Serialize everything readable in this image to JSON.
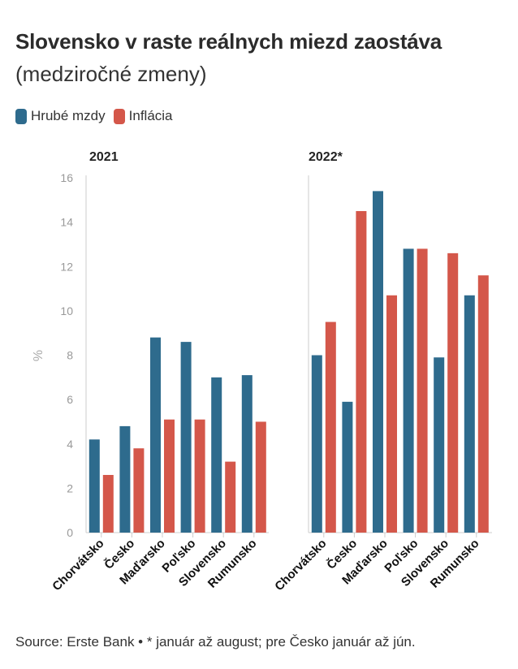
{
  "title": "Slovensko v raste reálnych miezd zaostáva",
  "subtitle": "(medziročné zmeny)",
  "legend": [
    {
      "label": "Hrubé mzdy",
      "color": "#2e6b8d"
    },
    {
      "label": "Inflácia",
      "color": "#d4574a"
    }
  ],
  "source": "Source: Erste Bank • * január až august; pre Česko január až jún.",
  "chart_data": {
    "type": "bar",
    "ylabel": "%",
    "ylim": [
      0,
      16
    ],
    "yticks": [
      0,
      2,
      4,
      6,
      8,
      10,
      12,
      14,
      16
    ],
    "grid": false,
    "legend_position": "top-left",
    "categories": [
      "Chorvátsko",
      "Česko",
      "Maďarsko",
      "Poľsko",
      "Slovensko",
      "Rumunsko"
    ],
    "panels": [
      {
        "title": "2021",
        "series": [
          {
            "name": "Hrubé mzdy",
            "color": "#2e6b8d",
            "values": [
              4.2,
              4.8,
              8.8,
              8.6,
              7.0,
              7.1
            ]
          },
          {
            "name": "Inflácia",
            "color": "#d4574a",
            "values": [
              2.6,
              3.8,
              5.1,
              5.1,
              3.2,
              5.0
            ]
          }
        ]
      },
      {
        "title": "2022*",
        "series": [
          {
            "name": "Hrubé mzdy",
            "color": "#2e6b8d",
            "values": [
              8.0,
              5.9,
              15.4,
              12.8,
              7.9,
              10.7
            ]
          },
          {
            "name": "Inflácia",
            "color": "#d4574a",
            "values": [
              9.5,
              14.5,
              10.7,
              12.8,
              12.6,
              11.6
            ]
          }
        ]
      }
    ]
  }
}
